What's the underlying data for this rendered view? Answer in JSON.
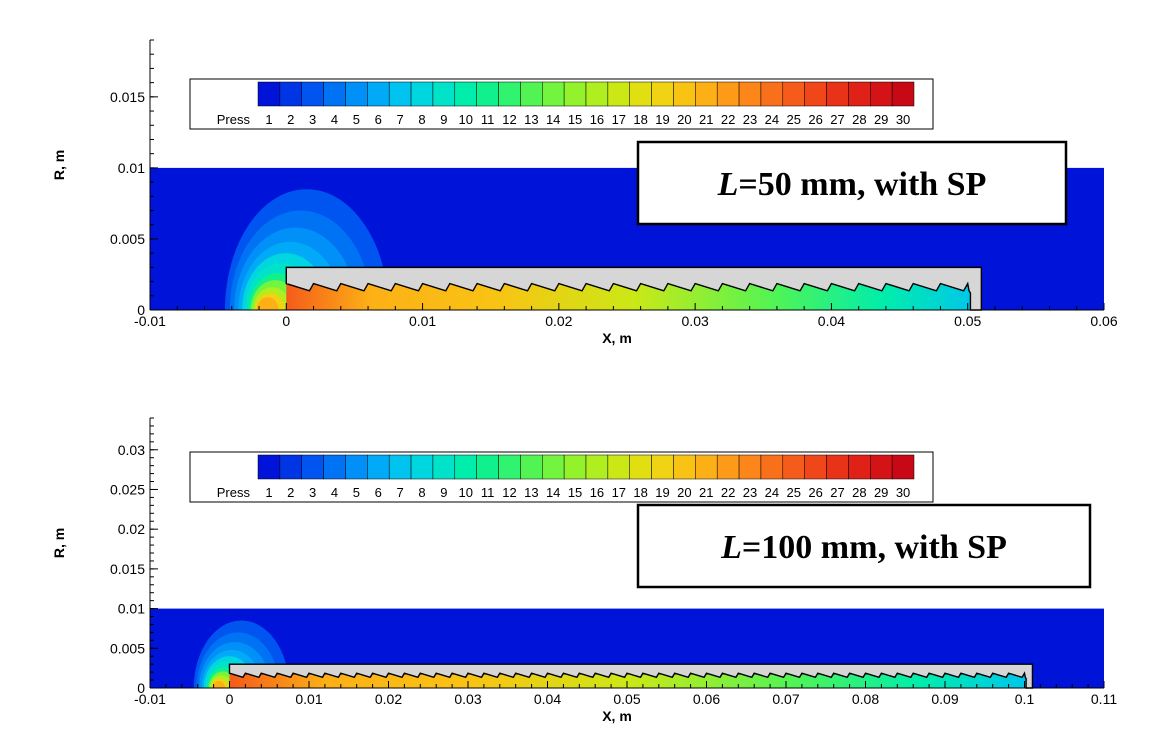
{
  "chart_data": [
    {
      "type": "heatmap",
      "case_label_italic": "L",
      "case_label_rest": "=50 mm, with SP",
      "xlabel": "X, m",
      "ylabel": "R, m",
      "xlim": [
        -0.01,
        0.06
      ],
      "ylim": [
        0,
        0.019
      ],
      "x_ticks": [
        -0.01,
        0,
        0.01,
        0.02,
        0.03,
        0.04,
        0.05,
        0.06
      ],
      "x_tick_labels": [
        "-0.01",
        "0",
        "0.01",
        "0.02",
        "0.03",
        "0.04",
        "0.05",
        "0.06"
      ],
      "y_ticks": [
        0,
        0.005,
        0.01,
        0.015
      ],
      "y_tick_labels": [
        "0",
        "0.005",
        "0.01",
        "0.015"
      ],
      "domain_radius": 0.01,
      "body_length": 0.051,
      "body_radius": 0.003,
      "colorbar": {
        "title": "Press",
        "levels": [
          "1",
          "2",
          "3",
          "4",
          "5",
          "6",
          "7",
          "8",
          "9",
          "10",
          "11",
          "12",
          "13",
          "14",
          "15",
          "16",
          "17",
          "18",
          "19",
          "20",
          "21",
          "22",
          "23",
          "24",
          "25",
          "26",
          "27",
          "28",
          "29",
          "30"
        ]
      }
    },
    {
      "type": "heatmap",
      "case_label_italic": "L",
      "case_label_rest": "=100 mm, with SP",
      "xlabel": "X, m",
      "ylabel": "R, m",
      "xlim": [
        -0.01,
        0.11
      ],
      "ylim": [
        0,
        0.034
      ],
      "x_ticks": [
        -0.01,
        0,
        0.01,
        0.02,
        0.03,
        0.04,
        0.05,
        0.06,
        0.07,
        0.08,
        0.09,
        0.1,
        0.11
      ],
      "x_tick_labels": [
        "-0.01",
        "0",
        "0.01",
        "0.02",
        "0.03",
        "0.04",
        "0.05",
        "0.06",
        "0.07",
        "0.08",
        "0.09",
        "0.1",
        "0.11"
      ],
      "y_ticks": [
        0,
        0.005,
        0.01,
        0.015,
        0.02,
        0.025,
        0.03
      ],
      "y_tick_labels": [
        "0",
        "0.005",
        "0.01",
        "0.015",
        "0.02",
        "0.025",
        "0.03"
      ],
      "domain_radius": 0.01,
      "body_length": 0.101,
      "body_radius": 0.003,
      "colorbar": {
        "title": "Press",
        "levels": [
          "1",
          "2",
          "3",
          "4",
          "5",
          "6",
          "7",
          "8",
          "9",
          "10",
          "11",
          "12",
          "13",
          "14",
          "15",
          "16",
          "17",
          "18",
          "19",
          "20",
          "21",
          "22",
          "23",
          "24",
          "25",
          "26",
          "27",
          "28",
          "29",
          "30"
        ]
      }
    }
  ],
  "colors": {
    "scale": [
      "#0013d8",
      "#0035e6",
      "#0055f0",
      "#0073f5",
      "#0090f8",
      "#00aaf6",
      "#00c3ef",
      "#00d6e0",
      "#00e3c8",
      "#00edac",
      "#10f18d",
      "#30f370",
      "#52f454",
      "#73f43e",
      "#93f22b",
      "#b0ef1f",
      "#cbe816",
      "#e1df12",
      "#f0d312",
      "#f9c314",
      "#fcb016",
      "#fd9b18",
      "#fc8619",
      "#f9701a",
      "#f55b1a",
      "#ef461a",
      "#e83319",
      "#df2118",
      "#d41316",
      "#c80814"
    ],
    "body_fill": "#d6d6d6",
    "domain_fill": "#0013d8"
  }
}
